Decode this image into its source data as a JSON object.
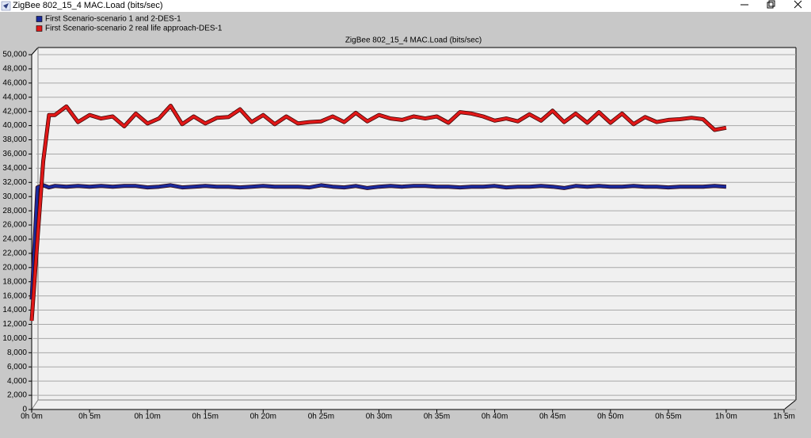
{
  "window": {
    "title": "ZigBee 802_15_4 MAC.Load (bits/sec)"
  },
  "chart_data": {
    "type": "line",
    "title": "ZigBee 802_15_4 MAC.Load (bits/sec)",
    "x": [
      0,
      0.5,
      1,
      1.5,
      2,
      3,
      4,
      5,
      6,
      7,
      8,
      9,
      10,
      11,
      12,
      13,
      14,
      15,
      16,
      17,
      18,
      19,
      20,
      21,
      22,
      23,
      24,
      25,
      26,
      27,
      28,
      29,
      30,
      31,
      32,
      33,
      34,
      35,
      36,
      37,
      38,
      39,
      40,
      41,
      42,
      43,
      44,
      45,
      46,
      47,
      48,
      49,
      50,
      51,
      52,
      53,
      54,
      55,
      56,
      57,
      58,
      59,
      60
    ],
    "series": [
      {
        "name": "First Scenario-scenario 1 and 2-DES-1",
        "color": "#1a2a9c",
        "values": [
          15500,
          31300,
          31600,
          31300,
          31500,
          31400,
          31500,
          31400,
          31500,
          31400,
          31500,
          31500,
          31300,
          31400,
          31600,
          31300,
          31400,
          31500,
          31400,
          31400,
          31300,
          31400,
          31500,
          31400,
          31400,
          31400,
          31300,
          31600,
          31400,
          31300,
          31500,
          31200,
          31400,
          31500,
          31400,
          31500,
          31500,
          31400,
          31400,
          31300,
          31400,
          31400,
          31500,
          31300,
          31400,
          31400,
          31500,
          31400,
          31200,
          31500,
          31400,
          31500,
          31400,
          31400,
          31500,
          31400,
          31400,
          31300,
          31400,
          31400,
          31400,
          31500,
          31400
        ]
      },
      {
        "name": "First Scenario-scenario 2 real life approach-DES-1",
        "color": "#e01818",
        "values": [
          12500,
          24000,
          35000,
          41500,
          41500,
          42700,
          40500,
          41500,
          41000,
          41300,
          39900,
          41700,
          40300,
          41000,
          42800,
          40200,
          41300,
          40300,
          41100,
          41200,
          42300,
          40500,
          41500,
          40200,
          41300,
          40300,
          40500,
          40600,
          41300,
          40500,
          41800,
          40600,
          41500,
          41000,
          40800,
          41300,
          41000,
          41300,
          40400,
          41900,
          41700,
          41300,
          40700,
          41000,
          40600,
          41600,
          40700,
          42100,
          40500,
          41700,
          40400,
          41900,
          40400,
          41700,
          40200,
          41200,
          40500,
          40800,
          40900,
          41100,
          40900,
          39400,
          39700
        ]
      }
    ],
    "xlim": [
      0,
      65
    ],
    "xticks": [
      {
        "value": 0,
        "label": "0h 0m"
      },
      {
        "value": 5,
        "label": "0h 5m"
      },
      {
        "value": 10,
        "label": "0h 10m"
      },
      {
        "value": 15,
        "label": "0h 15m"
      },
      {
        "value": 20,
        "label": "0h 20m"
      },
      {
        "value": 25,
        "label": "0h 25m"
      },
      {
        "value": 30,
        "label": "0h 30m"
      },
      {
        "value": 35,
        "label": "0h 35m"
      },
      {
        "value": 40,
        "label": "0h 40m"
      },
      {
        "value": 45,
        "label": "0h 45m"
      },
      {
        "value": 50,
        "label": "0h 50m"
      },
      {
        "value": 55,
        "label": "0h 55m"
      },
      {
        "value": 60,
        "label": "1h 0m"
      },
      {
        "value": 65,
        "label": "1h 5m"
      }
    ],
    "ylim": [
      0,
      50000
    ],
    "yticks": [
      0,
      {
        "value": 2000,
        "label": "2,000"
      },
      {
        "value": 4000,
        "label": "4,000"
      },
      {
        "value": 6000,
        "label": "6,000"
      },
      {
        "value": 8000,
        "label": "8,000"
      },
      {
        "value": 10000,
        "label": "10,000"
      },
      {
        "value": 12000,
        "label": "12,000"
      },
      {
        "value": 14000,
        "label": "14,000"
      },
      {
        "value": 16000,
        "label": "16,000"
      },
      {
        "value": 18000,
        "label": "18,000"
      },
      {
        "value": 20000,
        "label": "20,000"
      },
      {
        "value": 22000,
        "label": "22,000"
      },
      {
        "value": 24000,
        "label": "24,000"
      },
      {
        "value": 26000,
        "label": "26,000"
      },
      {
        "value": 28000,
        "label": "28,000"
      },
      {
        "value": 30000,
        "label": "30,000"
      },
      {
        "value": 32000,
        "label": "32,000"
      },
      {
        "value": 34000,
        "label": "34,000"
      },
      {
        "value": 36000,
        "label": "36,000"
      },
      {
        "value": 38000,
        "label": "38,000"
      },
      {
        "value": 40000,
        "label": "40,000"
      },
      {
        "value": 42000,
        "label": "42,000"
      },
      {
        "value": 44000,
        "label": "44,000"
      },
      {
        "value": 46000,
        "label": "46,000"
      },
      {
        "value": 48000,
        "label": "48,000"
      },
      {
        "value": 50000,
        "label": "50,000"
      }
    ],
    "grid": true
  }
}
